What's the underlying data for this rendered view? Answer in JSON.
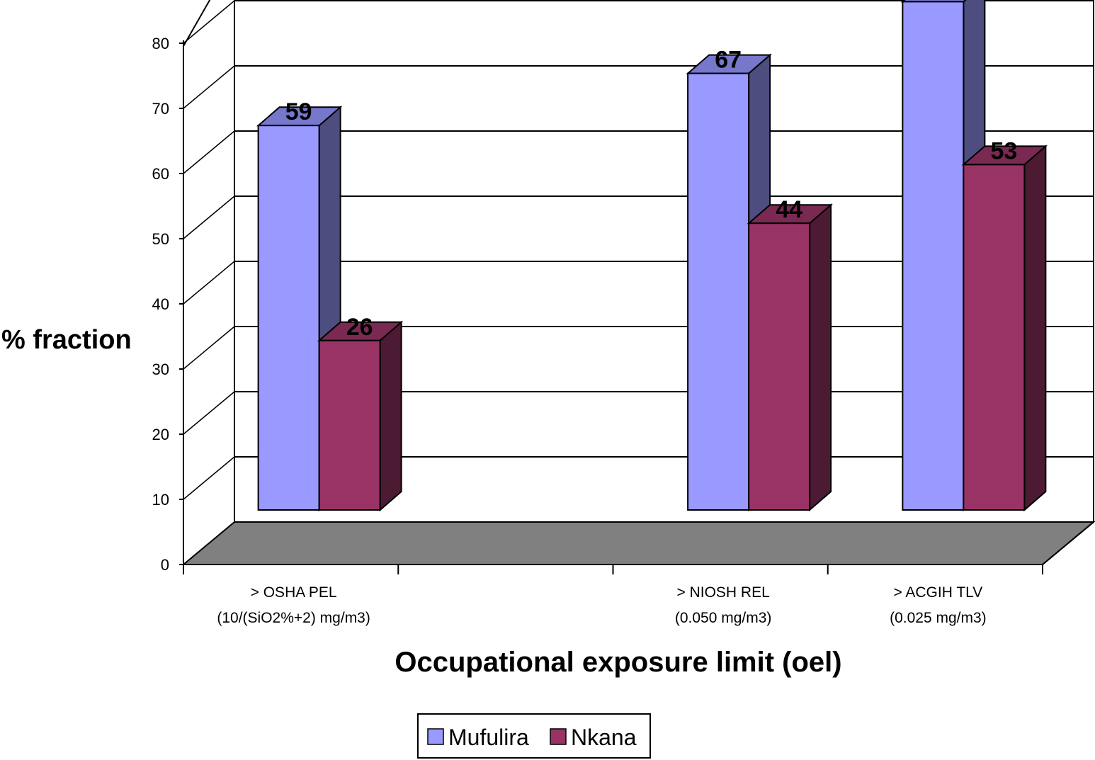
{
  "chart_data": {
    "type": "bar",
    "ylabel": "% fraction",
    "xlabel": "Occupational exposure limit (oel)",
    "ylim": [
      0,
      80
    ],
    "yticks": [
      0,
      10,
      20,
      30,
      40,
      50,
      60,
      70,
      80
    ],
    "grid": true,
    "legend_position": "bottom",
    "categories": [
      {
        "line1": "> OSHA PEL",
        "line2": "(10/(SiO2%+2)  mg/m3)"
      },
      {
        "line1": "> NIOSH REL",
        "line2": "(0.050 mg/m3)"
      },
      {
        "line1": "> ACGIH TLV",
        "line2": "(0.025 mg/m3)"
      }
    ],
    "series": [
      {
        "name": "Mufulira",
        "values": [
          59,
          67,
          78
        ],
        "color": "#9999ff",
        "side": "#4d4d80",
        "top": "#7777cc"
      },
      {
        "name": "Nkana",
        "values": [
          26,
          44,
          53
        ],
        "color": "#993366",
        "side": "#4d1a33",
        "top": "#7a2952"
      }
    ],
    "floor_color": "#808080"
  }
}
